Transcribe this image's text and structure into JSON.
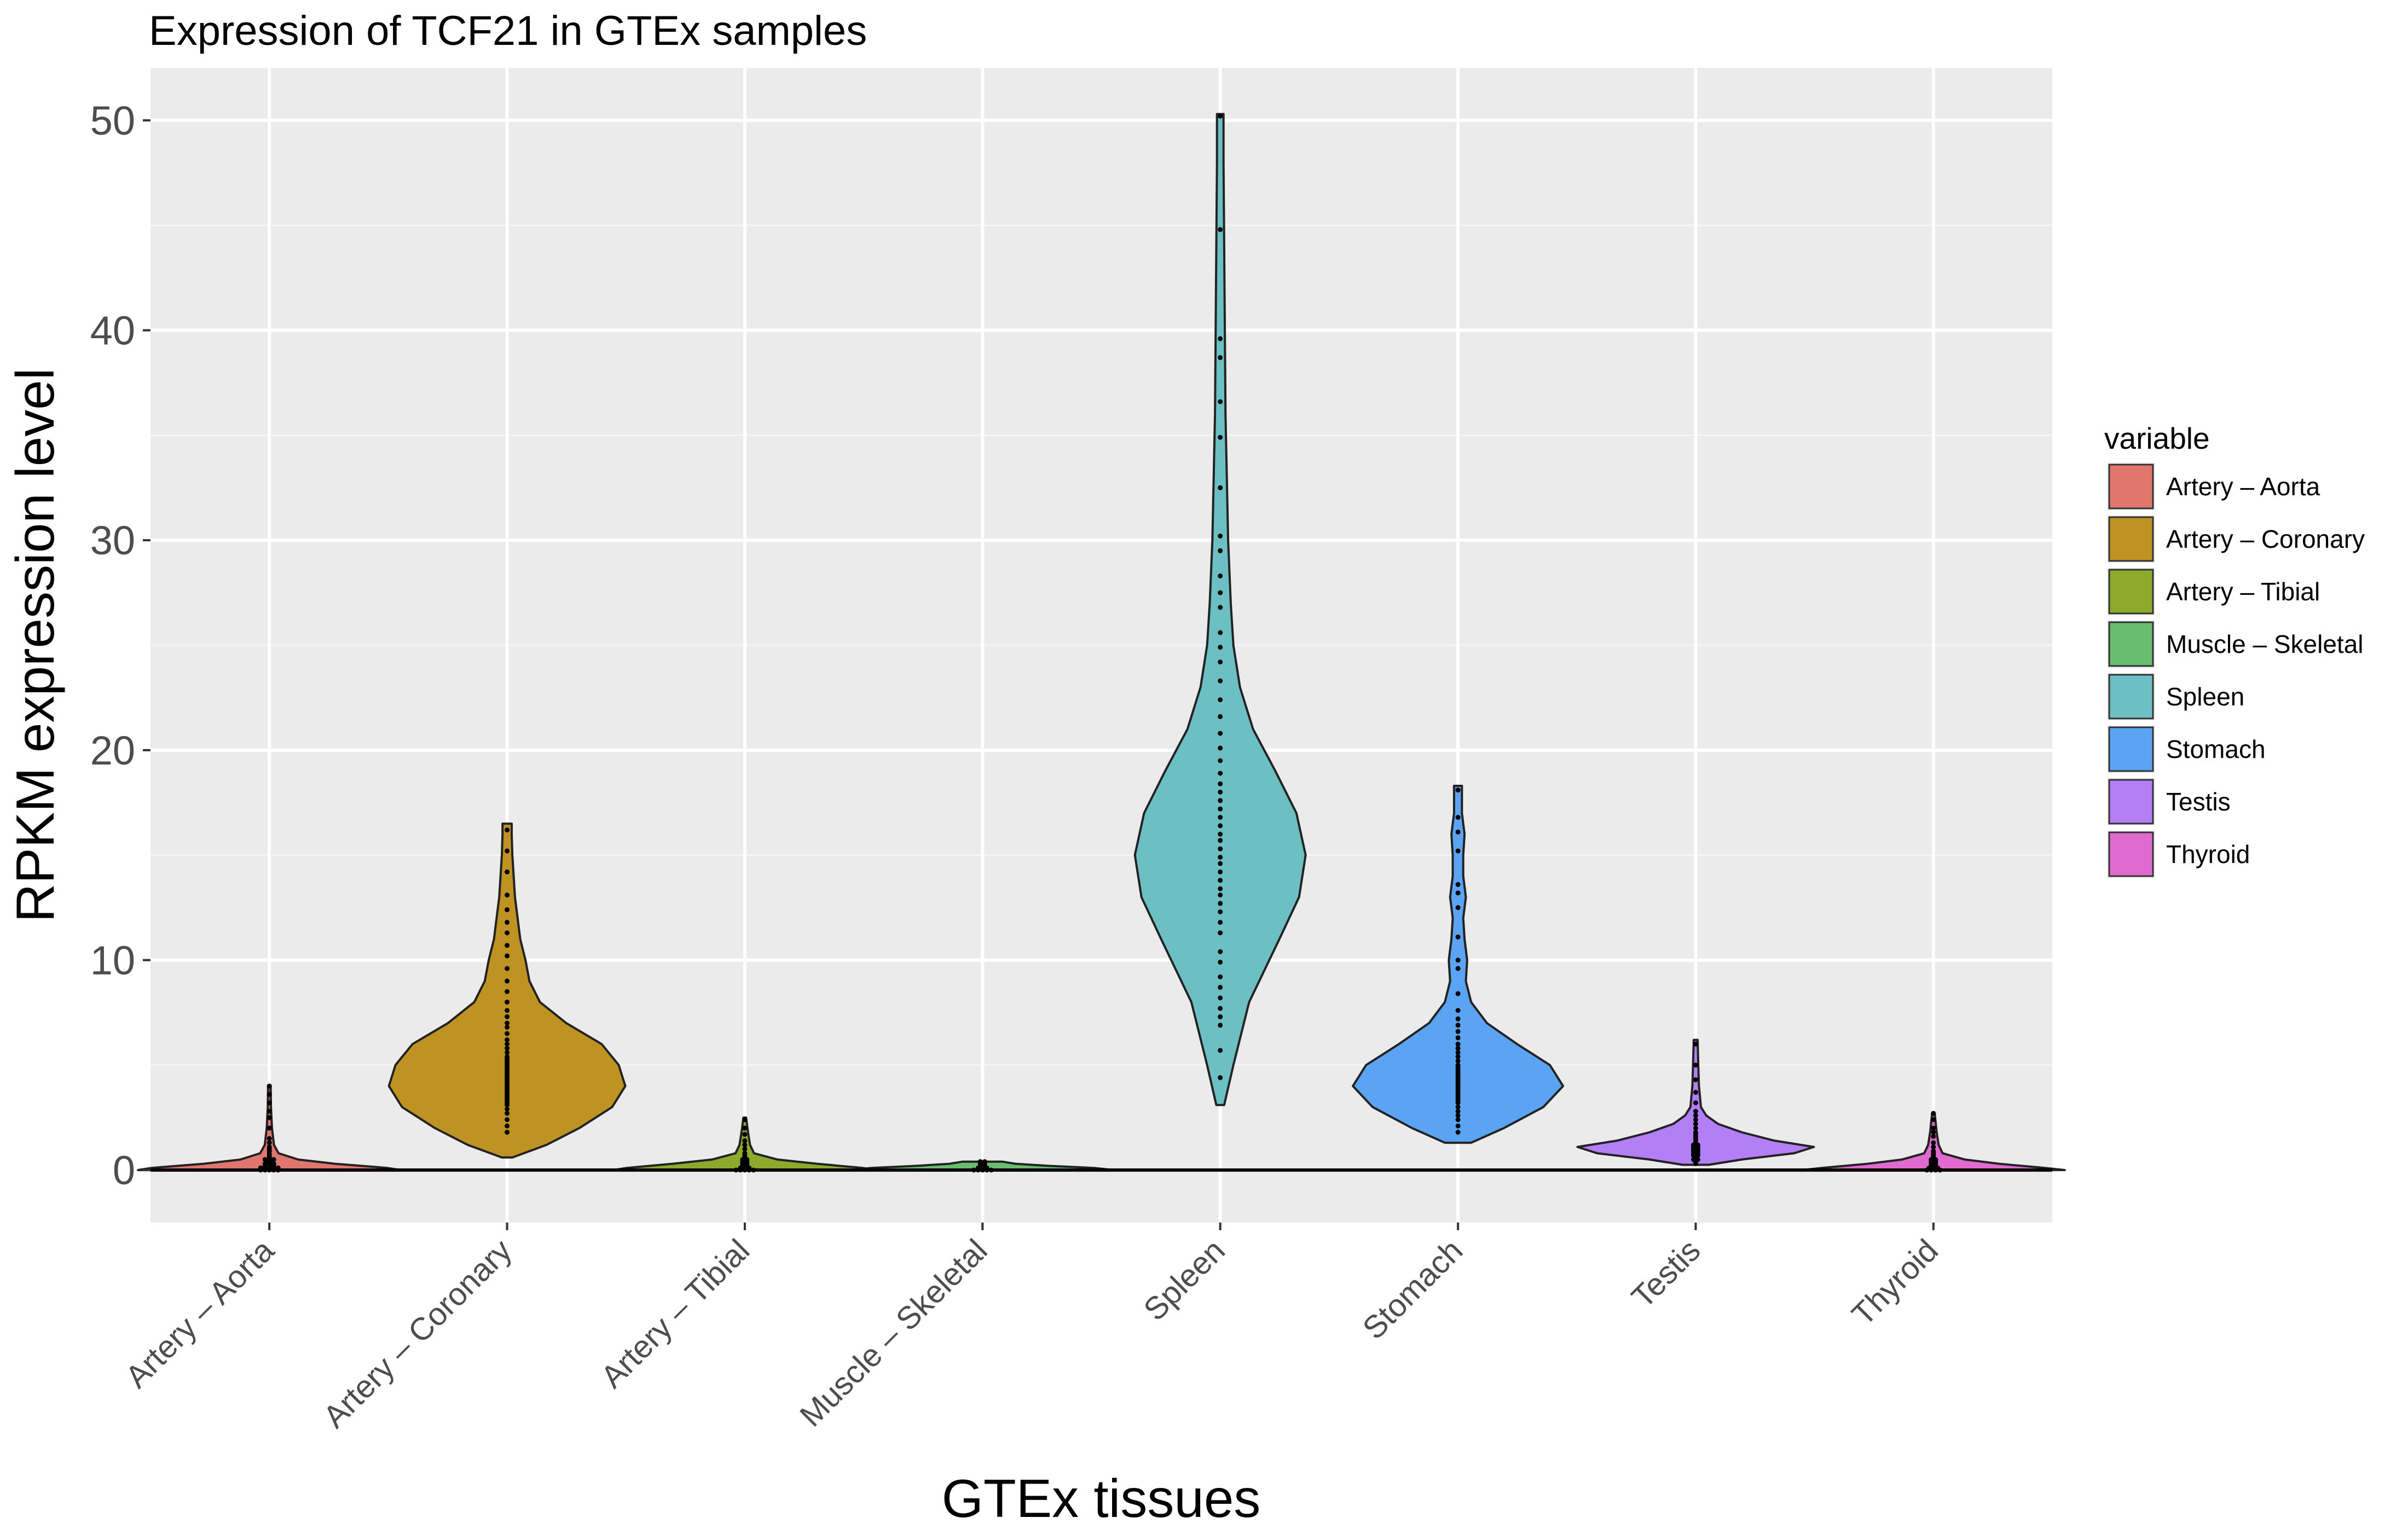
{
  "chart_data": {
    "type": "violin",
    "title": "Expression of TCF21 in GTEx samples",
    "xlabel": "GTEx tissues",
    "ylabel": "RPKM expression level",
    "ylim": [
      -2.5,
      52.5
    ],
    "yticks": [
      0,
      10,
      20,
      30,
      40,
      50
    ],
    "grid": true,
    "legend": {
      "title": "variable",
      "position": "right"
    },
    "categories": [
      "Artery – Aorta",
      "Artery – Coronary",
      "Artery – Tibial",
      "Muscle – Skeletal",
      "Spleen",
      "Stomach",
      "Testis",
      "Thyroid"
    ],
    "series": [
      {
        "name": "Artery – Aorta",
        "color": "#E0766E",
        "profile": [
          [
            0,
            1.0
          ],
          [
            0.1,
            0.9
          ],
          [
            0.3,
            0.5
          ],
          [
            0.5,
            0.22
          ],
          [
            0.8,
            0.07
          ],
          [
            1.2,
            0.035
          ],
          [
            2.0,
            0.02
          ],
          [
            3.0,
            0.012
          ],
          [
            4.0,
            0.01
          ]
        ],
        "points": [
          0,
          0,
          0,
          0,
          0,
          0.05,
          0.05,
          0.1,
          0.1,
          0.1,
          0.15,
          0.2,
          0.2,
          0.25,
          0.3,
          0.3,
          0.35,
          0.4,
          0.45,
          0.5,
          0.5,
          0.6,
          0.7,
          0.8,
          0.9,
          1.0,
          1.1,
          1.3,
          1.5,
          2.0,
          2.5,
          2.8,
          3.2,
          3.6,
          4.0
        ]
      },
      {
        "name": "Artery – Coronary",
        "color": "#BE9322",
        "profile": [
          [
            0.6,
            0.04
          ],
          [
            1.2,
            0.3
          ],
          [
            2.0,
            0.55
          ],
          [
            3.0,
            0.8
          ],
          [
            4.0,
            0.9
          ],
          [
            5.0,
            0.85
          ],
          [
            6.0,
            0.72
          ],
          [
            7.0,
            0.45
          ],
          [
            8.0,
            0.25
          ],
          [
            9.0,
            0.17
          ],
          [
            10.0,
            0.14
          ],
          [
            11.0,
            0.1
          ],
          [
            12.0,
            0.08
          ],
          [
            13.0,
            0.06
          ],
          [
            14.0,
            0.05
          ],
          [
            15.0,
            0.04
          ],
          [
            16.0,
            0.035
          ],
          [
            16.5,
            0.035
          ]
        ],
        "points": [
          1.8,
          2.1,
          2.4,
          2.7,
          2.9,
          3.1,
          3.2,
          3.3,
          3.4,
          3.5,
          3.6,
          3.7,
          3.8,
          3.9,
          4.0,
          4.1,
          4.2,
          4.3,
          4.4,
          4.5,
          4.6,
          4.7,
          4.8,
          4.9,
          5.0,
          5.1,
          5.2,
          5.3,
          5.4,
          5.6,
          5.8,
          6.0,
          6.2,
          6.5,
          6.8,
          7.0,
          7.3,
          7.6,
          8.0,
          8.5,
          9.0,
          9.6,
          10.2,
          10.7,
          11.3,
          11.8,
          12.4,
          13.1,
          14.2,
          15.2,
          16.2
        ]
      },
      {
        "name": "Artery – Tibial",
        "color": "#8EAA2C",
        "profile": [
          [
            0,
            1.0
          ],
          [
            0.1,
            0.9
          ],
          [
            0.3,
            0.55
          ],
          [
            0.5,
            0.25
          ],
          [
            0.8,
            0.07
          ],
          [
            1.2,
            0.04
          ],
          [
            1.8,
            0.025
          ],
          [
            2.5,
            0.01
          ]
        ],
        "points": [
          0,
          0,
          0,
          0,
          0,
          0.05,
          0.1,
          0.1,
          0.15,
          0.2,
          0.25,
          0.3,
          0.35,
          0.4,
          0.45,
          0.5,
          0.6,
          0.7,
          0.8,
          1.0,
          1.2,
          1.4,
          1.7,
          2.0,
          2.4
        ]
      },
      {
        "name": "Muscle – Skeletal",
        "color": "#69BD6F",
        "profile": [
          [
            0,
            1.0
          ],
          [
            0.1,
            0.85
          ],
          [
            0.2,
            0.5
          ],
          [
            0.3,
            0.25
          ],
          [
            0.4,
            0.15
          ]
        ],
        "points": [
          0,
          0,
          0,
          0,
          0,
          0.05,
          0.1,
          0.1,
          0.15,
          0.2,
          0.25,
          0.3,
          0.35,
          0.4
        ]
      },
      {
        "name": "Spleen",
        "color": "#6CC0C4",
        "profile": [
          [
            3.1,
            0.03
          ],
          [
            5,
            0.1
          ],
          [
            8,
            0.22
          ],
          [
            11,
            0.45
          ],
          [
            13,
            0.6
          ],
          [
            15,
            0.65
          ],
          [
            17,
            0.58
          ],
          [
            19,
            0.42
          ],
          [
            21,
            0.25
          ],
          [
            23,
            0.15
          ],
          [
            25,
            0.1
          ],
          [
            27,
            0.08
          ],
          [
            30,
            0.06
          ],
          [
            33,
            0.05
          ],
          [
            36,
            0.04
          ],
          [
            40,
            0.035
          ],
          [
            44,
            0.03
          ],
          [
            48,
            0.025
          ],
          [
            50.3,
            0.025
          ]
        ],
        "points": [
          4.4,
          5.7,
          6.9,
          7.3,
          7.7,
          8.2,
          8.7,
          9.2,
          9.9,
          10.4,
          11.3,
          11.8,
          12.3,
          12.7,
          13.1,
          13.4,
          13.8,
          14.2,
          14.6,
          14.9,
          15.3,
          15.7,
          16.0,
          16.4,
          16.8,
          17.2,
          17.6,
          18.0,
          18.4,
          18.9,
          19.5,
          20.1,
          20.8,
          21.6,
          22.4,
          23.3,
          24.2,
          24.9,
          25.6,
          26.8,
          27.5,
          28.3,
          29.5,
          30.2,
          32.5,
          34.9,
          36.6,
          38.7,
          39.6,
          44.8,
          50.2
        ]
      },
      {
        "name": "Stomach",
        "color": "#5BA4F4",
        "profile": [
          [
            1.3,
            0.1
          ],
          [
            2,
            0.35
          ],
          [
            3,
            0.65
          ],
          [
            4,
            0.8
          ],
          [
            5,
            0.7
          ],
          [
            6,
            0.45
          ],
          [
            7,
            0.22
          ],
          [
            8,
            0.1
          ],
          [
            9,
            0.06
          ],
          [
            10,
            0.07
          ],
          [
            11,
            0.05
          ],
          [
            12,
            0.04
          ],
          [
            13,
            0.06
          ],
          [
            14,
            0.04
          ],
          [
            15,
            0.04
          ],
          [
            16,
            0.05
          ],
          [
            17,
            0.03
          ],
          [
            18.3,
            0.03
          ]
        ],
        "points": [
          1.8,
          2.1,
          2.4,
          2.6,
          2.8,
          3.0,
          3.2,
          3.3,
          3.4,
          3.5,
          3.6,
          3.7,
          3.8,
          3.9,
          4.0,
          4.1,
          4.2,
          4.3,
          4.4,
          4.5,
          4.6,
          4.7,
          4.8,
          4.9,
          5.0,
          5.2,
          5.4,
          5.6,
          5.8,
          6.0,
          6.3,
          6.6,
          6.9,
          7.2,
          7.6,
          8.4,
          9.6,
          10.0,
          11.1,
          12.5,
          13.2,
          13.6,
          15.2,
          16.1,
          16.8,
          18.1
        ]
      },
      {
        "name": "Testis",
        "color": "#B47EF6",
        "profile": [
          [
            0.25,
            0.1
          ],
          [
            0.5,
            0.35
          ],
          [
            0.8,
            0.75
          ],
          [
            1.1,
            0.9
          ],
          [
            1.4,
            0.6
          ],
          [
            1.8,
            0.35
          ],
          [
            2.2,
            0.17
          ],
          [
            2.6,
            0.08
          ],
          [
            3.0,
            0.04
          ],
          [
            4,
            0.025
          ],
          [
            5,
            0.02
          ],
          [
            6.2,
            0.015
          ]
        ],
        "points": [
          0.3,
          0.4,
          0.5,
          0.5,
          0.6,
          0.7,
          0.7,
          0.8,
          0.8,
          0.9,
          0.9,
          1.0,
          1.0,
          1.1,
          1.1,
          1.2,
          1.2,
          1.3,
          1.4,
          1.5,
          1.6,
          1.7,
          1.8,
          2.0,
          2.2,
          2.4,
          2.6,
          2.8,
          3.2,
          3.7,
          4.3,
          5.0,
          6.0
        ]
      },
      {
        "name": "Thyroid",
        "color": "#E06ACF",
        "profile": [
          [
            0,
            1.0
          ],
          [
            0.1,
            0.85
          ],
          [
            0.3,
            0.5
          ],
          [
            0.5,
            0.24
          ],
          [
            0.8,
            0.07
          ],
          [
            1.2,
            0.04
          ],
          [
            1.8,
            0.025
          ],
          [
            2.7,
            0.01
          ]
        ],
        "points": [
          0,
          0,
          0,
          0,
          0.05,
          0.1,
          0.1,
          0.15,
          0.2,
          0.25,
          0.3,
          0.35,
          0.4,
          0.45,
          0.5,
          0.6,
          0.7,
          0.8,
          0.9,
          1.1,
          1.3,
          1.6,
          1.8,
          2.0,
          2.4,
          2.7
        ]
      }
    ]
  }
}
